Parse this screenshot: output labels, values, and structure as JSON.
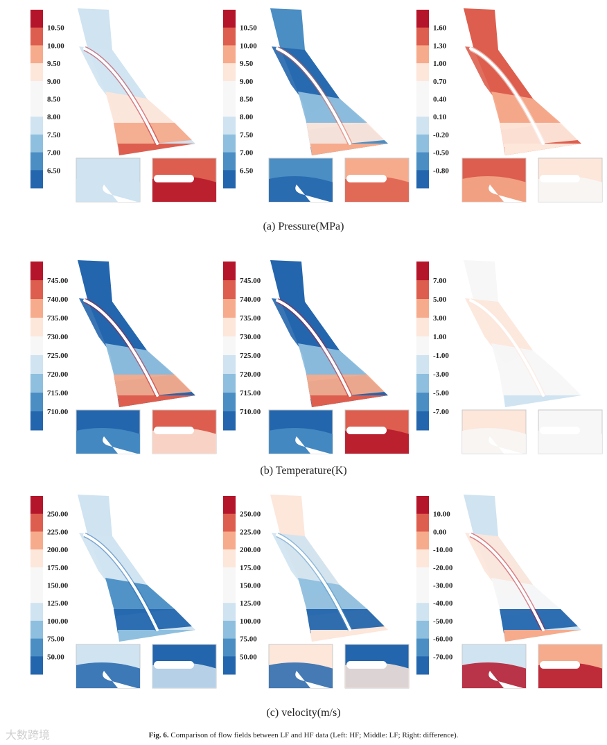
{
  "palette": [
    "#2466ad",
    "#4a8ec4",
    "#8fbfde",
    "#cfe3f1",
    "#f7f7f7",
    "#fde6da",
    "#f6ab8c",
    "#dd5e4e",
    "#b5152a"
  ],
  "rows": [
    {
      "title": "(a) Pressure(MPa)",
      "panels": [
        {
          "label": "HF",
          "ticks": [
            "10.50",
            "10.00",
            "9.50",
            "9.00",
            "8.50",
            "8.00",
            "7.50",
            "7.00",
            "6.50"
          ]
        },
        {
          "label": "LF",
          "ticks": [
            "10.50",
            "10.00",
            "9.50",
            "9.00",
            "8.50",
            "8.00",
            "7.50",
            "7.00",
            "6.50"
          ]
        },
        {
          "label": "difference",
          "ticks": [
            "1.60",
            "1.30",
            "1.00",
            "0.70",
            "0.40",
            "0.10",
            "-0.20",
            "-0.50",
            "-0.80"
          ]
        }
      ]
    },
    {
      "title": "(b) Temperature(K)",
      "panels": [
        {
          "label": "HF",
          "ticks": [
            "745.00",
            "740.00",
            "735.00",
            "730.00",
            "725.00",
            "720.00",
            "715.00",
            "710.00"
          ]
        },
        {
          "label": "LF",
          "ticks": [
            "745.00",
            "740.00",
            "735.00",
            "730.00",
            "725.00",
            "720.00",
            "715.00",
            "710.00"
          ]
        },
        {
          "label": "difference",
          "ticks": [
            "7.00",
            "5.00",
            "3.00",
            "1.00",
            "-1.00",
            "-3.00",
            "-5.00",
            "-7.00"
          ]
        }
      ]
    },
    {
      "title": "(c) velocity(m/s)",
      "panels": [
        {
          "label": "HF",
          "ticks": [
            "250.00",
            "225.00",
            "200.00",
            "175.00",
            "150.00",
            "125.00",
            "100.00",
            "75.00",
            "50.00"
          ]
        },
        {
          "label": "LF",
          "ticks": [
            "250.00",
            "225.00",
            "200.00",
            "175.00",
            "150.00",
            "125.00",
            "100.00",
            "75.00",
            "50.00"
          ]
        },
        {
          "label": "difference",
          "ticks": [
            "10.00",
            "0.00",
            "-10.00",
            "-20.00",
            "-30.00",
            "-40.00",
            "-50.00",
            "-60.00",
            "-70.00"
          ]
        }
      ]
    }
  ],
  "caption": {
    "label": "Fig. 6.",
    "text": "Comparison of flow fields between LF and HF data (Left: HF; Middle: LF; Right: difference)."
  },
  "watermark": "大数跨境"
}
